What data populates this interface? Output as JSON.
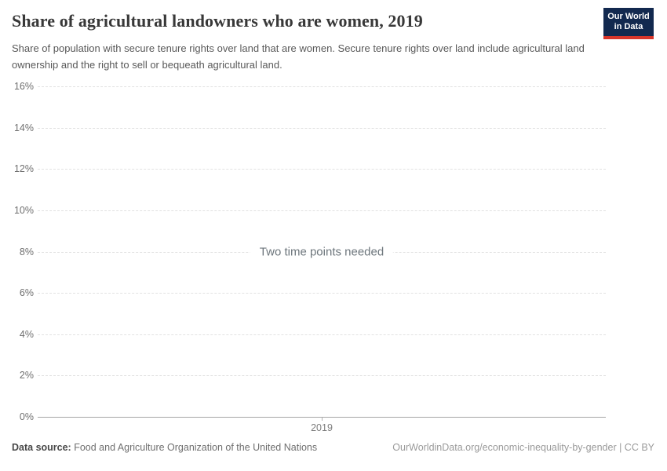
{
  "header": {
    "title": "Share of agricultural landowners who are women, 2019",
    "subtitle": "Share of population with secure tenure rights over land that are women. Secure tenure rights over land include agricultural land ownership and the right to sell or bequeath agricultural land.",
    "logo": {
      "line1": "Our World",
      "line2": "in Data",
      "background_color": "#12294f",
      "stripe_color": "#d8352a"
    }
  },
  "chart_data": {
    "type": "line",
    "title": "Share of agricultural landowners who are women, 2019",
    "note": "Two time points needed",
    "series": [],
    "x_ticks": [
      {
        "value": 2019,
        "label": "2019"
      }
    ],
    "y_ticks": [
      {
        "value": 0,
        "label": "0%"
      },
      {
        "value": 2,
        "label": "2%"
      },
      {
        "value": 4,
        "label": "4%"
      },
      {
        "value": 6,
        "label": "6%"
      },
      {
        "value": 8,
        "label": "8%"
      },
      {
        "value": 10,
        "label": "10%"
      },
      {
        "value": 12,
        "label": "12%"
      },
      {
        "value": 14,
        "label": "14%"
      },
      {
        "value": 16,
        "label": "16%"
      }
    ],
    "ylim": [
      0,
      16
    ],
    "xlabel": "",
    "ylabel": "",
    "grid": "horizontal-dashed",
    "legend_position": "none"
  },
  "footer": {
    "source_label": "Data source:",
    "source_value": " Food and Agriculture Organization of the United Nations",
    "credit": "OurWorldinData.org/economic-inequality-by-gender | CC BY"
  }
}
